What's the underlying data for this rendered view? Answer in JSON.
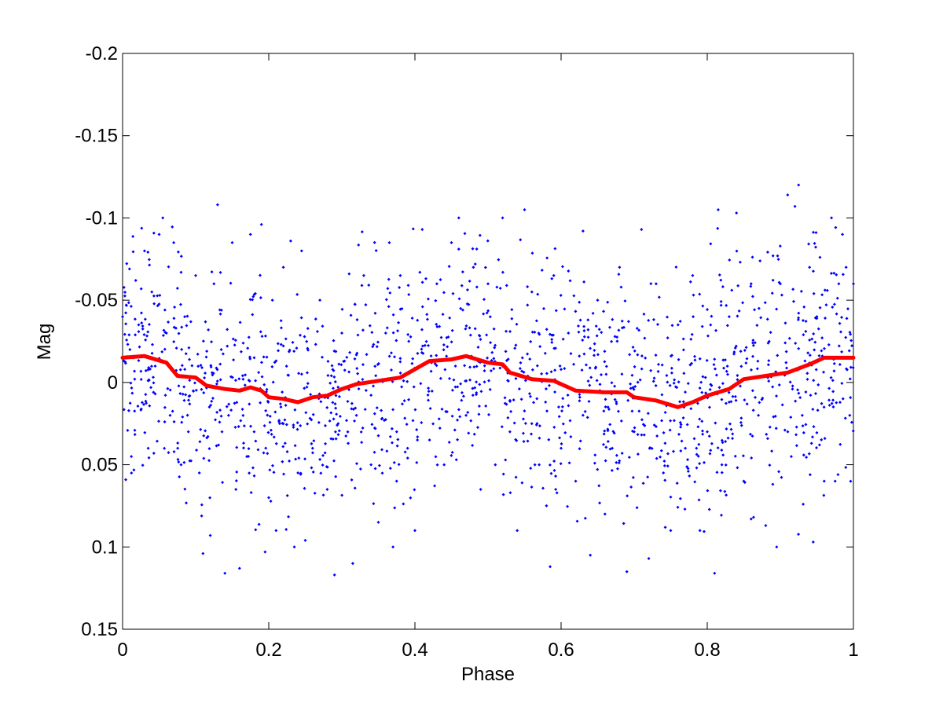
{
  "chart_data": {
    "type": "scatter",
    "title": "",
    "xlabel": "Phase",
    "ylabel": "Mag",
    "xlim": [
      0,
      1
    ],
    "ylim": [
      0.15,
      -0.2
    ],
    "y_reversed": true,
    "grid": false,
    "legend": "none",
    "xticks": [
      0,
      0.2,
      0.4,
      0.6,
      0.8,
      1
    ],
    "xtick_labels": [
      "0",
      "0.2",
      "0.4",
      "0.6",
      "0.8",
      "1"
    ],
    "yticks": [
      -0.2,
      -0.15,
      -0.1,
      -0.05,
      0,
      0.05,
      0.1,
      0.15
    ],
    "ytick_labels": [
      "-0.2",
      "-0.15",
      "-0.1",
      "-0.05",
      "0",
      "0.05",
      "0.1",
      "0.15"
    ],
    "series": [
      {
        "kind": "scatter",
        "color": "#0000ff",
        "points": [
          [
            0.0,
            -0.04
          ],
          [
            0.005,
            -0.047
          ],
          [
            0.01,
            -0.02
          ],
          [
            0.012,
            0.045
          ],
          [
            0.018,
            -0.062
          ],
          [
            0.022,
            -0.035
          ],
          [
            0.03,
            -0.08
          ],
          [
            0.035,
            0.04
          ],
          [
            0.04,
            -0.055
          ],
          [
            0.05,
            -0.09
          ],
          [
            0.055,
            -0.1
          ],
          [
            0.06,
            -0.03
          ],
          [
            0.065,
            0.02
          ],
          [
            0.07,
            -0.085
          ],
          [
            0.08,
            0.05
          ],
          [
            0.085,
            -0.04
          ],
          [
            0.09,
            0.03
          ],
          [
            0.1,
            -0.065
          ],
          [
            0.105,
            0.055
          ],
          [
            0.11,
            0.104
          ],
          [
            0.12,
            0.093
          ],
          [
            0.125,
            -0.06
          ],
          [
            0.13,
            -0.108
          ],
          [
            0.135,
            -0.02
          ],
          [
            0.14,
            0.116
          ],
          [
            0.145,
            0.02
          ],
          [
            0.15,
            -0.085
          ],
          [
            0.155,
            0.065
          ],
          [
            0.16,
            0.113
          ],
          [
            0.17,
            0.045
          ],
          [
            0.175,
            -0.09
          ],
          [
            0.18,
            0.03
          ],
          [
            0.19,
            -0.096
          ],
          [
            0.195,
            0.103
          ],
          [
            0.2,
            0.07
          ],
          [
            0.205,
            -0.05
          ],
          [
            0.21,
            0.09
          ],
          [
            0.215,
            0.025
          ],
          [
            0.22,
            -0.07
          ],
          [
            0.23,
            -0.086
          ],
          [
            0.235,
            0.1
          ],
          [
            0.24,
            0.055
          ],
          [
            0.245,
            -0.08
          ],
          [
            0.25,
            0.096
          ],
          [
            0.26,
            0.04
          ],
          [
            0.27,
            -0.05
          ],
          [
            0.28,
            0.065
          ],
          [
            0.29,
            0.117
          ],
          [
            0.295,
            0.025
          ],
          [
            0.3,
            -0.03
          ],
          [
            0.31,
            -0.066
          ],
          [
            0.315,
            0.11
          ],
          [
            0.32,
            0.02
          ],
          [
            0.33,
            -0.065
          ],
          [
            0.34,
            0.05
          ],
          [
            0.35,
            0.085
          ],
          [
            0.36,
            -0.03
          ],
          [
            0.365,
            -0.085
          ],
          [
            0.37,
            0.1
          ],
          [
            0.375,
            0.06
          ],
          [
            0.38,
            -0.065
          ],
          [
            0.39,
            0.04
          ],
          [
            0.4,
            0.09
          ],
          [
            0.41,
            -0.093
          ],
          [
            0.42,
            0.035
          ],
          [
            0.43,
            -0.06
          ],
          [
            0.44,
            0.05
          ],
          [
            0.45,
            -0.085
          ],
          [
            0.46,
            -0.1
          ],
          [
            0.47,
            0.02
          ],
          [
            0.48,
            -0.07
          ],
          [
            0.49,
            0.065
          ],
          [
            0.5,
            -0.06
          ],
          [
            0.51,
            0.05
          ],
          [
            0.52,
            -0.1
          ],
          [
            0.53,
            0.03
          ],
          [
            0.54,
            0.09
          ],
          [
            0.55,
            -0.105
          ],
          [
            0.56,
            -0.055
          ],
          [
            0.57,
            0.05
          ],
          [
            0.58,
            0.075
          ],
          [
            0.585,
            0.112
          ],
          [
            0.59,
            -0.065
          ],
          [
            0.6,
            0.04
          ],
          [
            0.61,
            -0.03
          ],
          [
            0.62,
            0.06
          ],
          [
            0.63,
            -0.092
          ],
          [
            0.64,
            0.105
          ],
          [
            0.65,
            -0.05
          ],
          [
            0.66,
            0.08
          ],
          [
            0.67,
            0.04
          ],
          [
            0.68,
            -0.07
          ],
          [
            0.69,
            0.115
          ],
          [
            0.7,
            0.03
          ],
          [
            0.71,
            -0.093
          ],
          [
            0.72,
            0.107
          ],
          [
            0.73,
            -0.06
          ],
          [
            0.74,
            0.055
          ],
          [
            0.75,
            0.09
          ],
          [
            0.76,
            -0.035
          ],
          [
            0.77,
            0.04
          ],
          [
            0.78,
            -0.065
          ],
          [
            0.79,
            0.09
          ],
          [
            0.8,
            0.03
          ],
          [
            0.81,
            0.116
          ],
          [
            0.815,
            -0.105
          ],
          [
            0.82,
            0.05
          ],
          [
            0.83,
            -0.04
          ],
          [
            0.84,
            -0.103
          ],
          [
            0.85,
            0.06
          ],
          [
            0.86,
            -0.06
          ],
          [
            0.87,
            0.02
          ],
          [
            0.88,
            0.087
          ],
          [
            0.89,
            -0.077
          ],
          [
            0.895,
            0.1
          ],
          [
            0.9,
            -0.06
          ],
          [
            0.91,
            -0.114
          ],
          [
            0.915,
            0.045
          ],
          [
            0.92,
            -0.107
          ],
          [
            0.925,
            -0.12
          ],
          [
            0.93,
            0.02
          ],
          [
            0.94,
            -0.07
          ],
          [
            0.945,
            0.097
          ],
          [
            0.95,
            -0.04
          ],
          [
            0.96,
            0.06
          ],
          [
            0.97,
            -0.1
          ],
          [
            0.975,
            0.06
          ],
          [
            0.98,
            -0.06
          ],
          [
            0.985,
            -0.09
          ],
          [
            0.99,
            -0.07
          ],
          [
            0.995,
            0.02
          ],
          [
            1.0,
            -0.06
          ]
        ],
        "density_n": 1500,
        "density_sd": 0.035
      },
      {
        "kind": "line",
        "color": "#ff0000",
        "points": [
          [
            0.0,
            -0.015
          ],
          [
            0.03,
            -0.016
          ],
          [
            0.06,
            -0.012
          ],
          [
            0.075,
            -0.004
          ],
          [
            0.1,
            -0.003
          ],
          [
            0.115,
            0.002
          ],
          [
            0.14,
            0.004
          ],
          [
            0.16,
            0.005
          ],
          [
            0.175,
            0.003
          ],
          [
            0.19,
            0.005
          ],
          [
            0.2,
            0.009
          ],
          [
            0.22,
            0.01
          ],
          [
            0.24,
            0.012
          ],
          [
            0.26,
            0.009
          ],
          [
            0.28,
            0.008
          ],
          [
            0.3,
            0.004
          ],
          [
            0.32,
            0.001
          ],
          [
            0.35,
            -0.001
          ],
          [
            0.38,
            -0.003
          ],
          [
            0.4,
            -0.008
          ],
          [
            0.42,
            -0.013
          ],
          [
            0.45,
            -0.014
          ],
          [
            0.47,
            -0.016
          ],
          [
            0.5,
            -0.012
          ],
          [
            0.52,
            -0.011
          ],
          [
            0.53,
            -0.006
          ],
          [
            0.56,
            -0.002
          ],
          [
            0.59,
            -0.001
          ],
          [
            0.61,
            0.003
          ],
          [
            0.62,
            0.005
          ],
          [
            0.66,
            0.006
          ],
          [
            0.69,
            0.006
          ],
          [
            0.7,
            0.009
          ],
          [
            0.73,
            0.011
          ],
          [
            0.76,
            0.015
          ],
          [
            0.78,
            0.012
          ],
          [
            0.8,
            0.008
          ],
          [
            0.83,
            0.004
          ],
          [
            0.85,
            -0.002
          ],
          [
            0.88,
            -0.004
          ],
          [
            0.91,
            -0.006
          ],
          [
            0.94,
            -0.011
          ],
          [
            0.96,
            -0.015
          ],
          [
            0.98,
            -0.015
          ],
          [
            1.0,
            -0.015
          ]
        ]
      }
    ]
  }
}
